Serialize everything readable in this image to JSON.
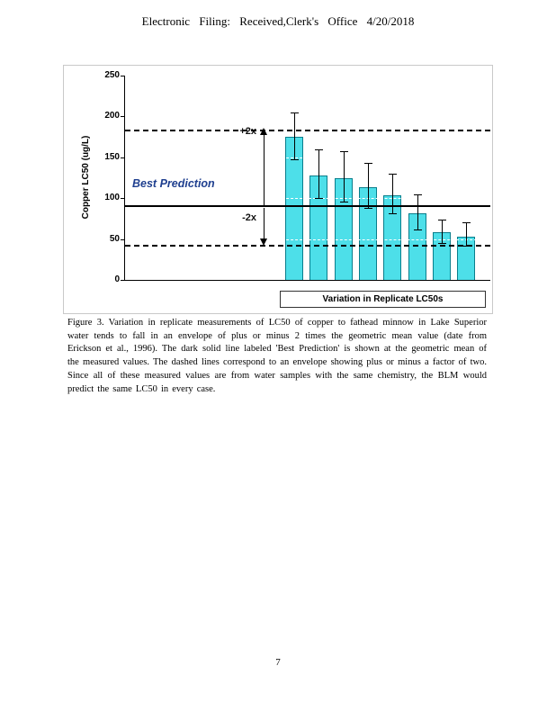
{
  "header": {
    "text": "Electronic Filing: Received,Clerk's Office 4/20/2018"
  },
  "footer": {
    "page_number": "7"
  },
  "caption": {
    "text": "Figure 3. Variation in replicate measurements of LC50 of copper to fathead minnow in Lake Superior water tends to fall in an envelope of plus or minus 2 times the geometric mean value (date from Erickson et al., 1996). The dark solid line labeled 'Best Prediction' is shown at the geometric mean of the measured values. The dashed lines correspond to an envelope showing plus or minus a factor of two. Since all of these measured values are from water samples with the same chemistry, the BLM would predict the same LC50 in every case."
  },
  "chart_data": {
    "type": "bar",
    "title": "",
    "ylabel": "Copper LC50 (ug/L)",
    "xlabel": "",
    "ylim": [
      0,
      250
    ],
    "yticks": [
      0,
      50,
      100,
      150,
      200,
      250
    ],
    "values": [
      175,
      128,
      125,
      113,
      104,
      82,
      58,
      53
    ],
    "error_upper": [
      205,
      160,
      158,
      143,
      130,
      105,
      74,
      70
    ],
    "error_lower": [
      148,
      100,
      96,
      88,
      82,
      62,
      45,
      42
    ],
    "best_prediction": 90,
    "upper_envelope": 183,
    "lower_envelope": 42,
    "annotations": {
      "plus": "+2x",
      "minus": "-2x",
      "best": "Best Prediction"
    },
    "legend": "Variation in Replicate LC50s",
    "legend_position": "bottom",
    "grid": "white dashed horizontal lines every 50 units",
    "bar_color": "#4ddfe9",
    "bar_border_color": "#0a7e8c",
    "best_prediction_label_color": "#1f3f8f",
    "line_color": "#000000"
  }
}
